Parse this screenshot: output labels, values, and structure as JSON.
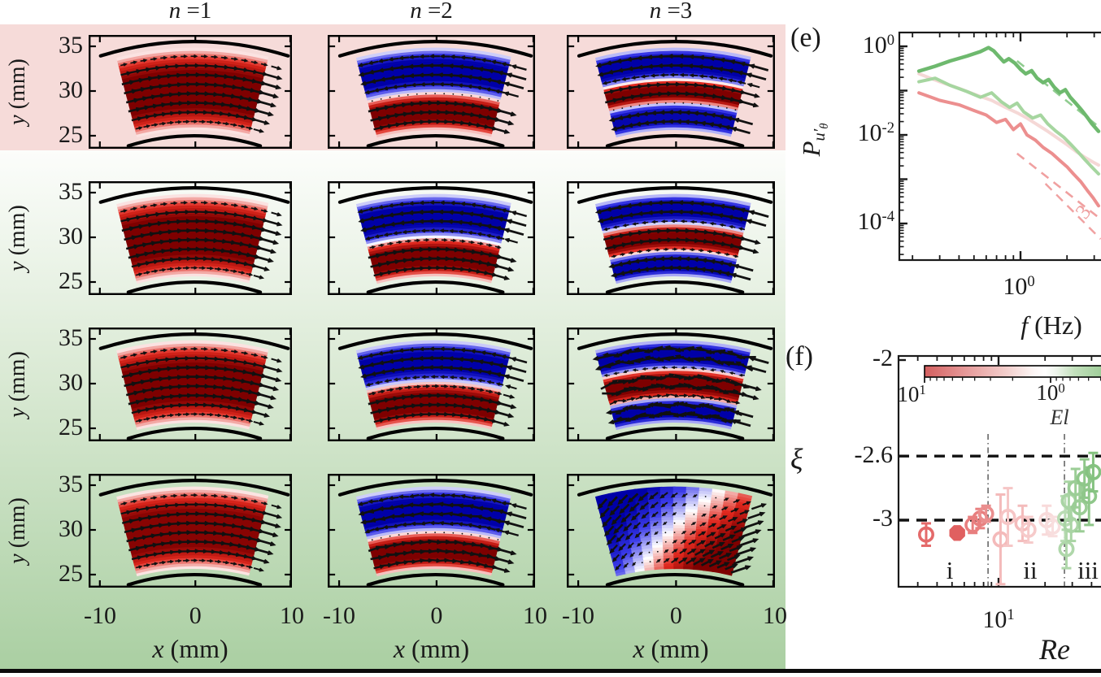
{
  "colors": {
    "band_pink": "#f6dbd9",
    "band_green_top": "#fcfdfb",
    "band_green_mid": "#d9e9d3",
    "band_green_bottom": "#aacfa2",
    "bottom_rule": "#0c0c0c",
    "spine": "#1a1a1a",
    "flow_red_bright": "#e0281e",
    "flow_red_dark": "#7e0000",
    "flow_blue_bright": "#3a3ae8",
    "flow_blue_dark": "#0000a8"
  },
  "grid": {
    "col_titles": [
      {
        "v": "n",
        "eq": " =1"
      },
      {
        "v": "n",
        "eq": " =2"
      },
      {
        "v": "n",
        "eq": " =3"
      }
    ],
    "ylabel": {
      "v": "y",
      "unit": " (mm)"
    },
    "xlabel": {
      "v": "x",
      "unit": " (mm)"
    },
    "yticks": [
      "35",
      "30",
      "25"
    ],
    "xticks": [
      "-10",
      "0",
      "10"
    ],
    "panels": [
      {
        "bands": [
          {
            "span": [
              0,
              1
            ],
            "v": 1
          }
        ]
      },
      {
        "bands": [
          {
            "span": [
              0,
              0.46
            ],
            "v": 1
          },
          {
            "span": [
              0.46,
              1
            ],
            "v": -1
          }
        ]
      },
      {
        "bands": [
          {
            "span": [
              0,
              0.33
            ],
            "v": -0.95
          },
          {
            "span": [
              0.33,
              0.62
            ],
            "v": 1
          },
          {
            "span": [
              0.62,
              1
            ],
            "v": -1
          }
        ]
      },
      {
        "bands": [
          {
            "span": [
              0,
              1
            ],
            "v": 1
          }
        ]
      },
      {
        "bands": [
          {
            "span": [
              0,
              0.48
            ],
            "v": 1
          },
          {
            "span": [
              0.48,
              1
            ],
            "v": -1
          }
        ]
      },
      {
        "bands": [
          {
            "span": [
              0,
              0.31
            ],
            "v": -1
          },
          {
            "span": [
              0.31,
              0.64
            ],
            "v": 1
          },
          {
            "span": [
              0.64,
              1
            ],
            "v": -1
          }
        ]
      },
      {
        "bands": [
          {
            "span": [
              0,
              1
            ],
            "v": 1
          }
        ]
      },
      {
        "bands": [
          {
            "span": [
              0,
              0.5
            ],
            "v": 1
          },
          {
            "span": [
              0.5,
              1
            ],
            "v": -1
          }
        ]
      },
      {
        "bands": [
          {
            "span": [
              0,
              0.3
            ],
            "v": -1
          },
          {
            "span": [
              0.3,
              0.66
            ],
            "v": 1
          },
          {
            "span": [
              0.66,
              1
            ],
            "v": -1
          }
        ],
        "arrowScale": 1.5,
        "jitter": 0.5
      },
      {
        "bands": [
          {
            "span": [
              0,
              1
            ],
            "v": 0.95
          }
        ]
      },
      {
        "bands": [
          {
            "span": [
              0,
              0.46
            ],
            "v": 1
          },
          {
            "span": [
              0.46,
              1
            ],
            "v": -1
          }
        ],
        "jitter": 0.25
      },
      {
        "diag": true
      }
    ]
  },
  "panel_e": {
    "label": "(e)",
    "ylabel": {
      "base": "P",
      "sub": "u′",
      "subsub": "θ"
    },
    "xlabel": {
      "v": "f",
      "unit": " (Hz)"
    },
    "ytick_labels": [
      {
        "b": "10",
        "e": "0"
      },
      {
        "b": "10",
        "e": "-2"
      },
      {
        "b": "10",
        "e": "-4"
      }
    ],
    "xtick_labels": [
      {
        "b": "10",
        "e": "0"
      }
    ],
    "slope_label": "3"
  },
  "panel_f": {
    "label": "(f)",
    "ylabel": "ξ",
    "xlabel": "Re",
    "ytick_labels": [
      "-2",
      "-2.6",
      "-3"
    ],
    "xtick_labels": [
      {
        "b": "10",
        "e": "1"
      }
    ],
    "colorbar": {
      "tick_left": {
        "b": "10",
        "e": "1"
      },
      "tick_right": {
        "b": "10",
        "e": "0"
      },
      "label": "El"
    },
    "regions": [
      "i",
      "ii",
      "iii"
    ]
  },
  "chart_data": [
    {
      "type": "line",
      "panel": "e",
      "xlabel": "f (Hz)",
      "ylabel": "P_{u'_theta}",
      "x_scale": "log",
      "y_scale": "log",
      "x_range_hz": [
        0.165,
        3.3
      ],
      "y_range": [
        1.5e-05,
        2.0
      ],
      "x_major_ticks_hz": [
        1
      ],
      "y_major_ticks": [
        1,
        0.01,
        0.0001
      ],
      "series": [
        {
          "name": "pale-pink",
          "color": "#f5d8d6",
          "width": 4,
          "f": [
            0.22,
            0.3,
            0.4,
            0.52,
            0.65,
            0.8,
            0.95,
            1.1,
            1.3,
            1.5,
            1.75,
            2.0,
            2.3,
            2.6,
            2.9,
            3.2
          ],
          "logP": [
            -0.62,
            -0.8,
            -0.95,
            -1.1,
            -1.22,
            -1.38,
            -1.5,
            -1.62,
            -1.78,
            -1.92,
            -2.08,
            -2.22,
            -2.38,
            -2.5,
            -2.6,
            -2.68
          ]
        },
        {
          "name": "light-green",
          "color": "#a6d6a0",
          "width": 4,
          "f": [
            0.22,
            0.28,
            0.35,
            0.45,
            0.55,
            0.65,
            0.75,
            0.85,
            0.95,
            1.05,
            1.2,
            1.35,
            1.5,
            1.7,
            1.9,
            2.1,
            2.35,
            2.6,
            2.85,
            3.2
          ],
          "logP": [
            -0.8,
            -0.72,
            -0.88,
            -1.02,
            -1.15,
            -1.05,
            -1.25,
            -1.38,
            -1.28,
            -1.48,
            -1.62,
            -1.55,
            -1.75,
            -1.92,
            -2.05,
            -2.2,
            -2.38,
            -2.55,
            -2.7,
            -2.88
          ]
        },
        {
          "name": "salmon-red",
          "color": "#ec8f8f",
          "width": 4,
          "f": [
            0.22,
            0.3,
            0.4,
            0.5,
            0.6,
            0.7,
            0.8,
            0.9,
            1.0,
            1.1,
            1.25,
            1.4,
            1.6,
            1.8,
            2.0,
            2.2,
            2.45,
            2.7,
            2.95,
            3.2
          ],
          "logP": [
            -1.05,
            -1.22,
            -1.32,
            -1.45,
            -1.55,
            -1.72,
            -1.65,
            -1.88,
            -1.75,
            -2.0,
            -2.12,
            -2.28,
            -2.42,
            -2.58,
            -2.72,
            -2.88,
            -3.05,
            -3.25,
            -3.42,
            -3.6
          ]
        },
        {
          "name": "dark-green",
          "color": "#6eb96e",
          "width": 4.5,
          "f": [
            0.22,
            0.28,
            0.35,
            0.45,
            0.55,
            0.62,
            0.67,
            0.72,
            0.78,
            0.84,
            0.92,
            1.0,
            1.08,
            1.18,
            1.28,
            1.4,
            1.52,
            1.65,
            1.8,
            1.95,
            2.1,
            2.3,
            2.5,
            2.7,
            2.9,
            3.2
          ],
          "logP": [
            -0.56,
            -0.45,
            -0.33,
            -0.22,
            -0.12,
            -0.03,
            -0.1,
            -0.22,
            -0.35,
            -0.28,
            -0.38,
            -0.52,
            -0.62,
            -0.55,
            -0.72,
            -0.82,
            -0.75,
            -0.92,
            -1.05,
            -0.98,
            -1.15,
            -1.3,
            -1.45,
            -1.6,
            -1.75,
            -1.92
          ]
        }
      ],
      "guides": [
        {
          "name": "green-dashed-slope",
          "color": "#90cc90",
          "width": 2.6,
          "f": [
            0.95,
            3.3
          ],
          "logP": [
            -0.33,
            -1.85
          ]
        },
        {
          "name": "red-dashed-slope",
          "color": "#f0a0a0",
          "width": 2.6,
          "f": [
            0.95,
            3.3
          ],
          "logP": [
            -2.42,
            -3.9
          ]
        },
        {
          "name": "red-dashed-slope-2",
          "color": "#f0a0a0",
          "width": 2.4,
          "f": [
            1.45,
            3.3
          ],
          "logP": [
            -3.1,
            -4.35
          ]
        }
      ],
      "slope_annotation": {
        "text": "3",
        "f": 2.67,
        "logP": -3.76
      }
    },
    {
      "type": "scatter",
      "panel": "f",
      "xlabel": "Re",
      "ylabel": "xi",
      "x_scale": "log",
      "x_range": [
        2.3,
        46
      ],
      "y_range": [
        -3.45,
        -2.0
      ],
      "y_ticks": [
        -2,
        -2.6,
        -3
      ],
      "x_major_ticks": [
        10
      ],
      "hlines_dashed": [
        -2.6,
        -3
      ],
      "vlines_dashdot_Re": [
        8.55,
        26.7
      ],
      "colorbar": {
        "label": "El",
        "scale": "log-reversed",
        "left_value": 10,
        "right_tick_value": 1,
        "gradient": [
          "#d35f5f",
          "#e49393",
          "#f3cfcd",
          "#fdf7f6",
          "#ffffff",
          "#eef5ec",
          "#c2e0bc",
          "#98ca92"
        ]
      },
      "region_labels": [
        {
          "text": "i",
          "Re": 4.8
        },
        {
          "text": "ii",
          "Re": 16.0
        },
        {
          "text": "iii",
          "Re": 38.0
        }
      ],
      "points": [
        {
          "Re": 3.4,
          "xi": -3.09,
          "err": 0.07,
          "color": "#e46a6a",
          "marker": "open-circle"
        },
        {
          "Re": 5.4,
          "xi": -3.08,
          "err": 0.0,
          "color": "#e06060",
          "marker": "filled-octagon"
        },
        {
          "Re": 6.8,
          "xi": -3.03,
          "err": 0.05,
          "color": "#e87f7f",
          "marker": "open-circle"
        },
        {
          "Re": 7.6,
          "xi": -2.99,
          "err": 0.06,
          "color": "#e87f7f",
          "marker": "open-circle"
        },
        {
          "Re": 8.3,
          "xi": -2.96,
          "err": 0.05,
          "color": "#ea8e8e",
          "marker": "open-circle"
        },
        {
          "Re": 10.3,
          "xi": -3.12,
          "err": 0.28,
          "color": "#f4baba",
          "marker": "open-circle"
        },
        {
          "Re": 11.5,
          "xi": -2.98,
          "err": 0.18,
          "color": "#f6c6c6",
          "marker": "open-circle"
        },
        {
          "Re": 14.3,
          "xi": -3.02,
          "err": 0.11,
          "color": "#f4bcbc",
          "marker": "open-circle"
        },
        {
          "Re": 15.6,
          "xi": -3.06,
          "err": 0.08,
          "color": "#f6caca",
          "marker": "open-circle"
        },
        {
          "Re": 20.5,
          "xi": -3.0,
          "err": 0.09,
          "color": "#f8dada",
          "marker": "open-circle"
        },
        {
          "Re": 22.4,
          "xi": -3.04,
          "err": 0.06,
          "color": "#f8dede",
          "marker": "open-circle"
        },
        {
          "Re": 27.0,
          "xi": -2.99,
          "err": 0.14,
          "color": "#b9dcb4",
          "marker": "open-circle"
        },
        {
          "Re": 27.5,
          "xi": -3.18,
          "err": 0.12,
          "color": "#afd7aa",
          "marker": "open-circle"
        },
        {
          "Re": 28.5,
          "xi": -2.88,
          "err": 0.12,
          "color": "#a9d4a4",
          "marker": "open-circle"
        },
        {
          "Re": 29.5,
          "xi": -3.03,
          "err": 0.1,
          "color": "#a9d4a4",
          "marker": "open-circle"
        },
        {
          "Re": 31.5,
          "xi": -2.8,
          "err": 0.12,
          "color": "#9bcd96",
          "marker": "open-circle"
        },
        {
          "Re": 33.5,
          "xi": -2.92,
          "err": 0.15,
          "color": "#9bcd96",
          "marker": "open-circle"
        },
        {
          "Re": 36.0,
          "xi": -2.74,
          "err": 0.12,
          "color": "#8fc78a",
          "marker": "open-circle"
        },
        {
          "Re": 38.5,
          "xi": -2.85,
          "err": 0.18,
          "color": "#8fc78a",
          "marker": "open-circle"
        },
        {
          "Re": 41.0,
          "xi": -2.7,
          "err": 0.12,
          "color": "#85c280",
          "marker": "open-circle"
        }
      ]
    },
    {
      "type": "vector_field_grid",
      "rows": 4,
      "cols": 3,
      "col_titles": [
        "n =1",
        "n =2",
        "n =3"
      ],
      "x_ticks_mm": [
        -10,
        0,
        10
      ],
      "y_ticks_mm": [
        35,
        30,
        25
      ],
      "radial_band_signs_by_column": {
        "n1": [
          "+"
        ],
        "n2": [
          "outer -",
          "inner +"
        ],
        "n3": [
          "outer -",
          "middle +",
          "inner -"
        ]
      }
    }
  ]
}
